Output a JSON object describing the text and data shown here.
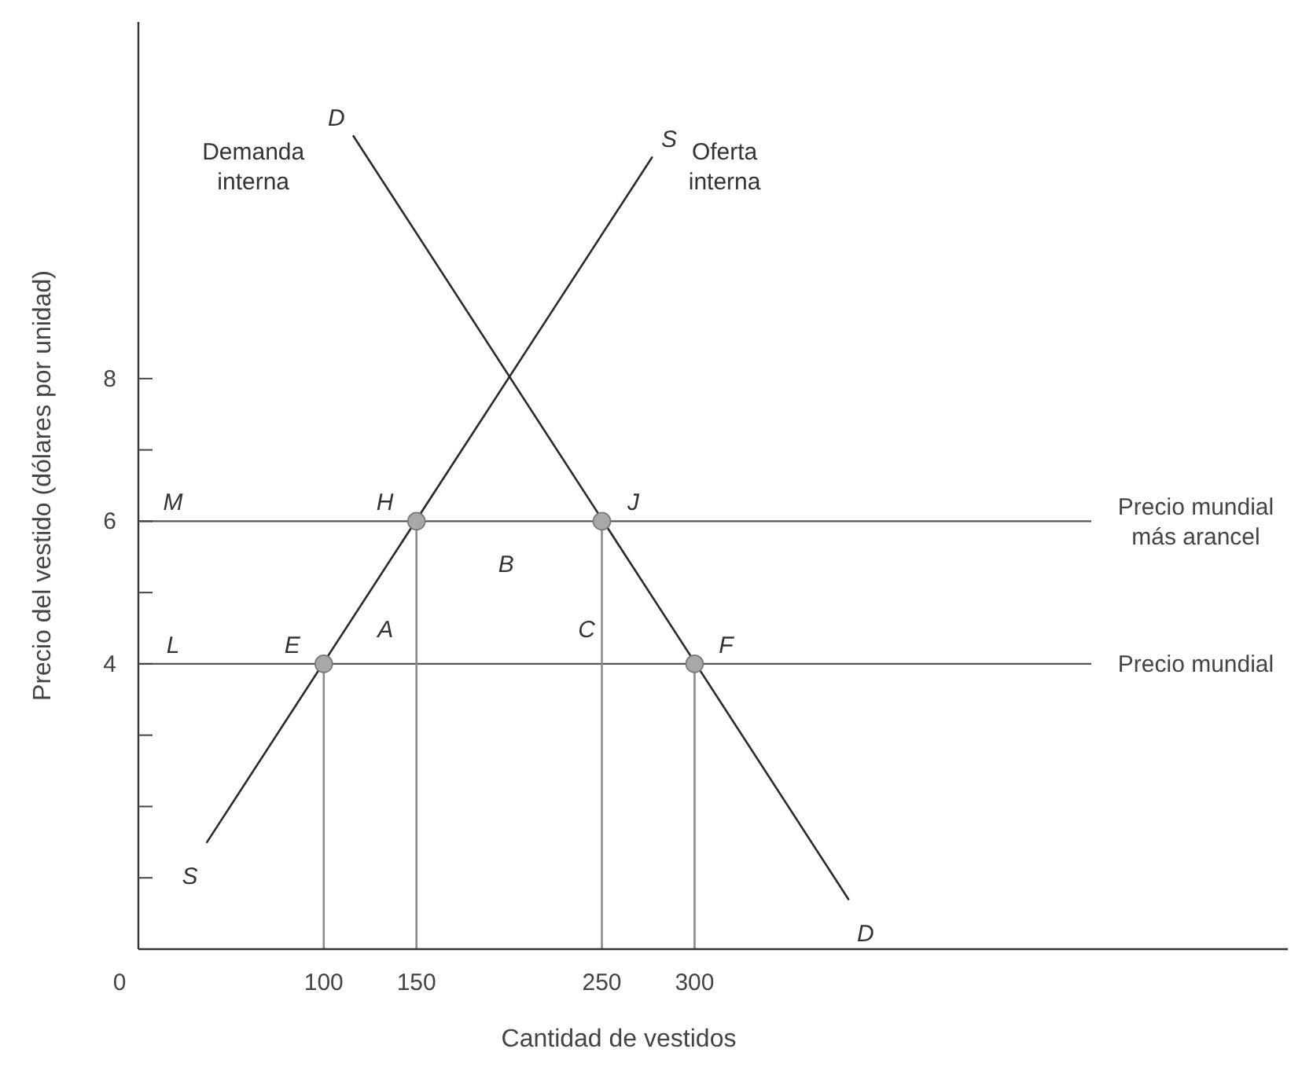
{
  "chart_data": {
    "type": "line",
    "xlabel": "Cantidad de vestidos",
    "ylabel": "Precio del vestido (dólares por unidad)",
    "xlim": [
      0,
      620
    ],
    "ylim": [
      0,
      13
    ],
    "xticks": [
      0,
      100,
      150,
      250,
      300
    ],
    "yticks": [
      {
        "value": 1,
        "label": null
      },
      {
        "value": 2,
        "label": null
      },
      {
        "value": 3,
        "label": null
      },
      4,
      {
        "value": 5,
        "label": null
      },
      6,
      {
        "value": 7,
        "label": null
      },
      8
    ],
    "grid": false,
    "series": [
      {
        "type": "line",
        "color": "#2b2b2b",
        "x": [
          37,
          277
        ],
        "values": [
          1.5,
          11.1
        ]
      },
      {
        "type": "line",
        "color": "#2b2b2b",
        "x": [
          116,
          383
        ],
        "values": [
          11.4,
          0.7
        ]
      },
      {
        "type": "line",
        "color": "#8a8a8a",
        "x": [
          100,
          100
        ],
        "values": [
          0,
          4
        ]
      },
      {
        "type": "line",
        "color": "#8a8a8a",
        "x": [
          150,
          150
        ],
        "values": [
          0,
          6
        ]
      },
      {
        "type": "line",
        "color": "#8a8a8a",
        "x": [
          250,
          250
        ],
        "values": [
          0,
          6
        ]
      },
      {
        "type": "line",
        "color": "#8a8a8a",
        "x": [
          300,
          300
        ],
        "values": [
          0,
          4
        ]
      },
      {
        "type": "scatter",
        "color": "#a8a8a8",
        "marker": "circle",
        "x": [
          100,
          150,
          250,
          300
        ],
        "values": [
          4,
          6,
          6,
          4
        ]
      }
    ],
    "ref_lines": [
      {
        "axis": "y",
        "value": 6,
        "label": "Precio mundial más arancel",
        "color": "#555555"
      },
      {
        "axis": "y",
        "value": 4,
        "label": "Precio mundial",
        "color": "#555555"
      }
    ],
    "annotations": [
      {
        "text": "D",
        "x": 116,
        "y": 11.4
      },
      {
        "text": "S",
        "x": 277,
        "y": 11.1
      },
      "Demanda interna",
      "Oferta interna",
      {
        "text": "M",
        "x": 0,
        "y": 6
      },
      {
        "text": "H",
        "x": 150,
        "y": 6
      },
      {
        "text": "J",
        "x": 250,
        "y": 6
      },
      {
        "text": "L",
        "x": 0,
        "y": 4
      },
      {
        "text": "E",
        "x": 100,
        "y": 4
      },
      {
        "text": "F",
        "x": 300,
        "y": 4
      },
      "A",
      "B",
      "C",
      {
        "text": "S",
        "x": 37,
        "y": 1.5
      },
      {
        "text": "D",
        "x": 383,
        "y": 0.7
      }
    ]
  }
}
